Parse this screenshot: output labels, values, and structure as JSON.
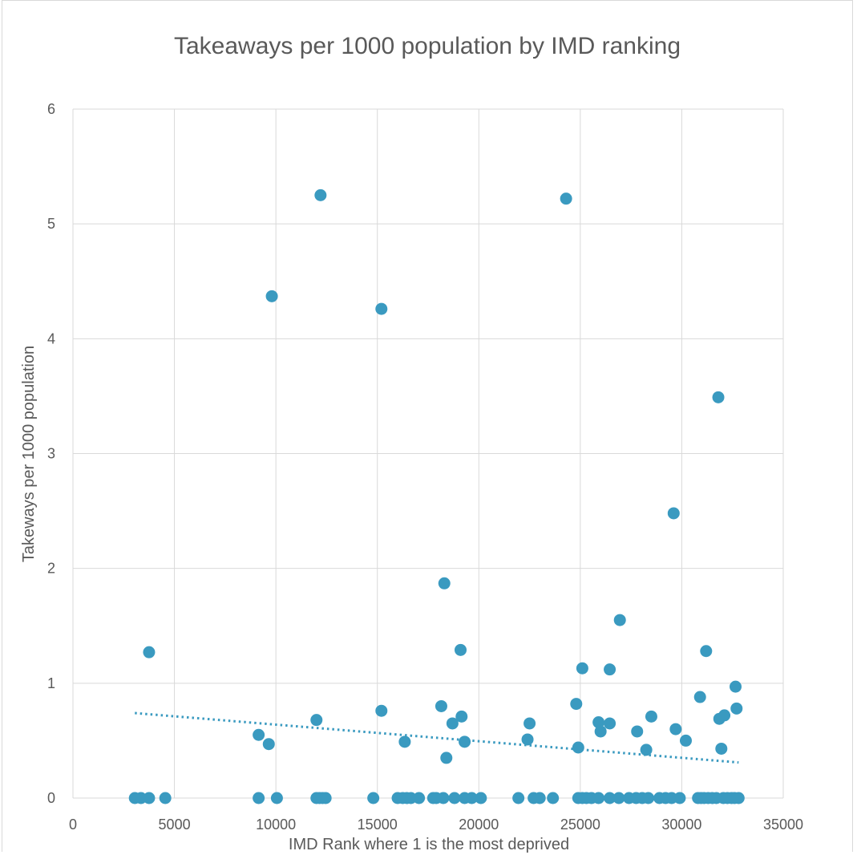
{
  "chart_data": {
    "type": "scatter",
    "title": "Takeaways per 1000 population by IMD ranking",
    "xlabel": "IMD Rank where 1 is the most deprived",
    "ylabel": "Takeways per 1000 population",
    "xlim": [
      0,
      35000
    ],
    "ylim": [
      0,
      6
    ],
    "xticks": [
      0,
      5000,
      10000,
      15000,
      20000,
      25000,
      30000,
      35000
    ],
    "yticks": [
      0,
      1,
      2,
      3,
      4,
      5,
      6
    ],
    "grid": true,
    "legend": "none",
    "colors": {
      "points": "#3a9ac0",
      "trendline": "#3a9ac0",
      "grid": "#d9d9d9",
      "text": "#595959"
    },
    "trendline": {
      "style": "dotted",
      "x": [
        3050,
        32800
      ],
      "y": [
        0.74,
        0.31
      ]
    },
    "series": [
      {
        "points": [
          [
            3050,
            0
          ],
          [
            3350,
            0
          ],
          [
            3750,
            0
          ],
          [
            4550,
            0
          ],
          [
            9150,
            0
          ],
          [
            10050,
            0
          ],
          [
            12000,
            0
          ],
          [
            12150,
            0
          ],
          [
            12300,
            0
          ],
          [
            12450,
            0
          ],
          [
            14800,
            0
          ],
          [
            16000,
            0
          ],
          [
            16250,
            0
          ],
          [
            16450,
            0
          ],
          [
            16650,
            0
          ],
          [
            17050,
            0
          ],
          [
            17750,
            0
          ],
          [
            17900,
            0
          ],
          [
            18250,
            0
          ],
          [
            18800,
            0
          ],
          [
            19300,
            0
          ],
          [
            19650,
            0
          ],
          [
            20100,
            0
          ],
          [
            21950,
            0
          ],
          [
            22700,
            0
          ],
          [
            23000,
            0
          ],
          [
            23650,
            0
          ],
          [
            24900,
            0
          ],
          [
            25100,
            0
          ],
          [
            25300,
            0
          ],
          [
            25550,
            0
          ],
          [
            25900,
            0
          ],
          [
            26450,
            0
          ],
          [
            26900,
            0
          ],
          [
            27400,
            0
          ],
          [
            27750,
            0
          ],
          [
            28050,
            0
          ],
          [
            28350,
            0
          ],
          [
            28900,
            0
          ],
          [
            29200,
            0
          ],
          [
            29500,
            0
          ],
          [
            29900,
            0
          ],
          [
            30800,
            0
          ],
          [
            30950,
            0
          ],
          [
            31100,
            0
          ],
          [
            31300,
            0
          ],
          [
            31500,
            0
          ],
          [
            31700,
            0
          ],
          [
            32050,
            0
          ],
          [
            32250,
            0
          ],
          [
            32450,
            0
          ],
          [
            32600,
            0
          ],
          [
            32800,
            0
          ],
          [
            3750,
            1.27
          ],
          [
            9150,
            0.55
          ],
          [
            9650,
            0.47
          ],
          [
            9800,
            4.37
          ],
          [
            12000,
            0.68
          ],
          [
            12200,
            5.25
          ],
          [
            15200,
            4.26
          ],
          [
            15200,
            0.76
          ],
          [
            16350,
            0.49
          ],
          [
            18150,
            0.8
          ],
          [
            18300,
            1.87
          ],
          [
            18400,
            0.35
          ],
          [
            18700,
            0.65
          ],
          [
            19100,
            1.29
          ],
          [
            19150,
            0.71
          ],
          [
            19300,
            0.49
          ],
          [
            22400,
            0.51
          ],
          [
            22500,
            0.65
          ],
          [
            24300,
            5.22
          ],
          [
            24800,
            0.82
          ],
          [
            24900,
            0.44
          ],
          [
            25100,
            1.13
          ],
          [
            25900,
            0.66
          ],
          [
            26000,
            0.58
          ],
          [
            26450,
            0.65
          ],
          [
            26450,
            1.12
          ],
          [
            26950,
            1.55
          ],
          [
            27800,
            0.58
          ],
          [
            28250,
            0.42
          ],
          [
            28500,
            0.71
          ],
          [
            29600,
            2.48
          ],
          [
            29700,
            0.6
          ],
          [
            30200,
            0.5
          ],
          [
            30900,
            0.88
          ],
          [
            31200,
            1.28
          ],
          [
            31800,
            3.49
          ],
          [
            31850,
            0.69
          ],
          [
            31950,
            0.43
          ],
          [
            32100,
            0.72
          ],
          [
            32650,
            0.97
          ],
          [
            32700,
            0.78
          ]
        ]
      }
    ]
  }
}
